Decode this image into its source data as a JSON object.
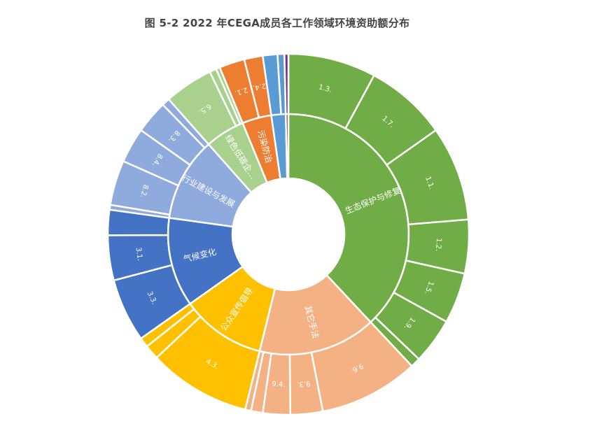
{
  "chart_data": {
    "type": "sunburst",
    "title": "图 5-2 2022 年CEGA成员各工作领域环境资助额分布",
    "colors": {
      "生态保护与修复": "#70ad47",
      "其它手法": "#f4b183",
      "公众宣传倡导": "#ffc000",
      "气候变化": "#4472c4",
      "行业建设与发展": "#8faadc",
      "绿色低碳企...": "#a9d18e",
      "污染防治": "#ed7d31",
      "other-blue": "#5b9bd5",
      "other-purple": "#7030a0"
    },
    "categories": [
      {
        "name": "生态保护与修复",
        "label": "生态保护与修复",
        "color": "#70ad47",
        "children": [
          {
            "name": "1.3.",
            "value": 9.0
          },
          {
            "name": "1.7.",
            "value": 8.4
          },
          {
            "name": "1.1.",
            "value": 9.7
          },
          {
            "name": "1.2.",
            "value": 5.5
          },
          {
            "name": "1.5.",
            "value": 5.2
          },
          {
            "name": "1.9.",
            "value": 4.7
          },
          {
            "name": "",
            "value": 1.0
          }
        ]
      },
      {
        "name": "其它手法",
        "label": "其它手法",
        "color": "#f4b183",
        "children": [
          {
            "name": "9.6.",
            "value": 10.2
          },
          {
            "name": "9.3.",
            "value": 3.3
          },
          {
            "name": "9.4.",
            "value": 2.8
          },
          {
            "name": "",
            "value": 1.2
          },
          {
            "name": "",
            "value": 0.6
          }
        ]
      },
      {
        "name": "公众宣传倡导",
        "label": "公众宣传倡导",
        "color": "#ffc000",
        "children": [
          {
            "name": "4.3.",
            "value": 10.5
          },
          {
            "name": "",
            "value": 1.5
          },
          {
            "name": "",
            "value": 1.0
          }
        ]
      },
      {
        "name": "气候变化",
        "label": "气候变化",
        "color": "#4472c4",
        "children": [
          {
            "name": "3.3.",
            "value": 6.5
          },
          {
            "name": "3.1.",
            "value": 4.6
          },
          {
            "name": "",
            "value": 2.6
          }
        ]
      },
      {
        "name": "行业建设与发展",
        "label": "行业建设与发展",
        "color": "#8faadc",
        "children": [
          {
            "name": "",
            "value": 0.5
          },
          {
            "name": "8.2.",
            "value": 4.6
          },
          {
            "name": "8.4.",
            "value": 3.6
          },
          {
            "name": "8.3.",
            "value": 3.4
          },
          {
            "name": "",
            "value": 0.8
          }
        ]
      },
      {
        "name": "绿色低碳企...",
        "label": "绿色低碳企…",
        "color": "#a9d18e",
        "children": [
          {
            "name": "6.5.",
            "value": 5.0
          },
          {
            "name": "",
            "value": 0.7
          },
          {
            "name": "",
            "value": 0.4
          }
        ]
      },
      {
        "name": "污染防治",
        "label": "污染防治",
        "color": "#ed7d31",
        "children": [
          {
            "name": "2.1.",
            "value": 2.6
          },
          {
            "name": "2.4.",
            "value": 1.9
          }
        ]
      },
      {
        "name": "",
        "label": "",
        "color": "#5b9bd5",
        "children": [
          {
            "name": "",
            "value": 1.5
          },
          {
            "name": "",
            "value": 0.7
          }
        ]
      },
      {
        "name": "",
        "label": "",
        "color": "#7030a0",
        "children": [
          {
            "name": "",
            "value": 0.4
          }
        ]
      }
    ]
  }
}
